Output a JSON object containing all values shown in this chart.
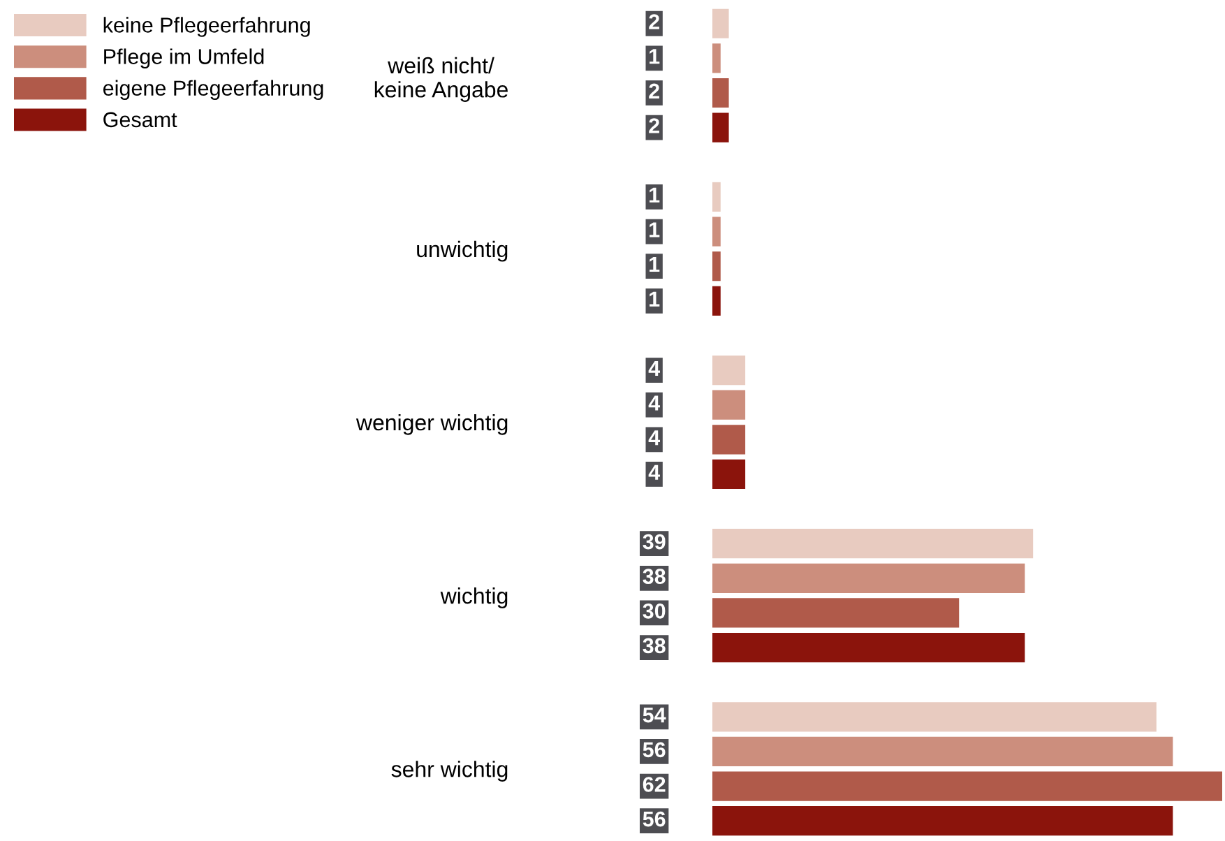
{
  "chart_data": {
    "type": "bar",
    "orientation": "horizontal",
    "categories": [
      "weiß nicht/\nkeine Angabe",
      "unwichtig",
      "weniger wichtig",
      "wichtig",
      "sehr wichtig"
    ],
    "series": [
      {
        "name": "keine Pflegeerfahrung",
        "color": "#e8cbc0",
        "values": [
          2,
          1,
          4,
          39,
          54
        ]
      },
      {
        "name": "Pflege im Umfeld",
        "color": "#cc8e7d",
        "values": [
          1,
          1,
          4,
          38,
          56
        ]
      },
      {
        "name": "eigene Pflegeerfahrung",
        "color": "#b05a4a",
        "values": [
          2,
          1,
          4,
          30,
          62
        ]
      },
      {
        "name": "Gesamt",
        "color": "#8b140c",
        "values": [
          2,
          1,
          4,
          38,
          56
        ]
      }
    ],
    "data_labels": true,
    "legend": "top left",
    "grid": false
  }
}
